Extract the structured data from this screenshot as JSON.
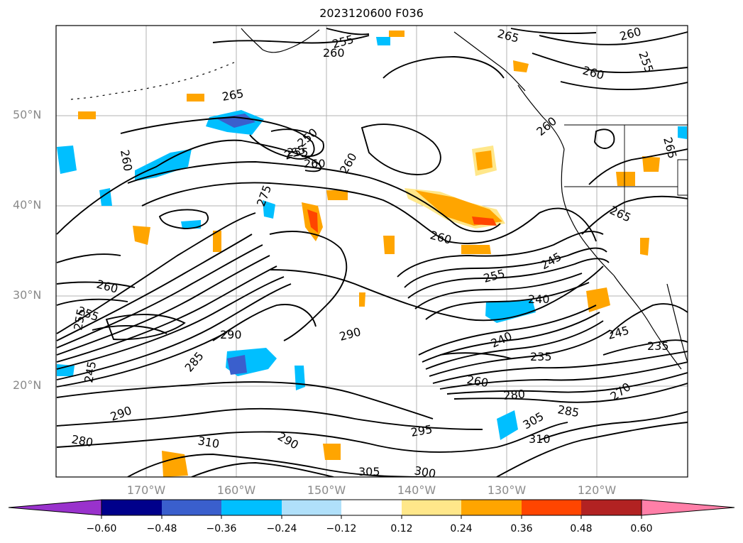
{
  "title": "2023120600 F036",
  "lat_labels": [
    "50°N",
    "40°N",
    "30°N",
    "20°N"
  ],
  "lon_labels": [
    "170°W",
    "160°W",
    "150°W",
    "140°W",
    "130°W",
    "120°W"
  ],
  "contour_labels": [
    "265",
    "260",
    "255",
    "260",
    "260",
    "255",
    "265",
    "260",
    "255",
    "250",
    "255",
    "260",
    "260",
    "275",
    "260",
    "265",
    "260",
    "265",
    "260",
    "255",
    "290",
    "290",
    "290",
    "285",
    "245",
    "240",
    "245",
    "240",
    "235",
    "235",
    "260",
    "280",
    "285",
    "305",
    "310",
    "295",
    "300",
    "305",
    "310",
    "280",
    "290",
    "270",
    "255",
    "255",
    "245"
  ],
  "colorbar": {
    "ticks": [
      "−0.60",
      "−0.48",
      "−0.36",
      "−0.24",
      "−0.12",
      "0.12",
      "0.24",
      "0.36",
      "0.48",
      "0.60"
    ],
    "colors": [
      "#9932cc",
      "#00008b",
      "#3a5fcd",
      "#00bfff",
      "#b0e0fa",
      "#ffffff",
      "#ffe78a",
      "#ffa500",
      "#ff4500",
      "#b22222",
      "#ff7fa8"
    ]
  }
}
